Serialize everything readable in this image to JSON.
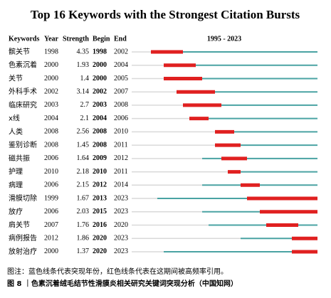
{
  "title": "Top 16 Keywords with the Strongest Citation Bursts",
  "headers": [
    "Keywords",
    "Year",
    "Strength",
    "Begin",
    "End"
  ],
  "range_label": "1995 - 2023",
  "range": [
    1995,
    2023
  ],
  "rows": [
    {
      "keyword": "髌关节",
      "year": 1998,
      "strength": 4.35,
      "begin": 1998,
      "end": 2002
    },
    {
      "keyword": "色素沉着",
      "year": 2000,
      "strength": 1.93,
      "begin": 2000,
      "end": 2004
    },
    {
      "keyword": "关节",
      "year": 2000,
      "strength": 1.4,
      "begin": 2000,
      "end": 2005
    },
    {
      "keyword": "外科手术",
      "year": 2002,
      "strength": 3.14,
      "begin": 2002,
      "end": 2007
    },
    {
      "keyword": "临床研究",
      "year": 2003,
      "strength": 2.7,
      "begin": 2003,
      "end": 2008
    },
    {
      "keyword": "x线",
      "year": 2004,
      "strength": 2.1,
      "begin": 2004,
      "end": 2006
    },
    {
      "keyword": "人类",
      "year": 2008,
      "strength": 2.56,
      "begin": 2008,
      "end": 2010
    },
    {
      "keyword": "鉴别诊断",
      "year": 2008,
      "strength": 1.45,
      "begin": 2008,
      "end": 2011
    },
    {
      "keyword": "磁共振",
      "year": 2006,
      "strength": 1.64,
      "begin": 2009,
      "end": 2012
    },
    {
      "keyword": "护理",
      "year": 2010,
      "strength": 2.18,
      "begin": 2010,
      "end": 2011
    },
    {
      "keyword": "病理",
      "year": 2006,
      "strength": 2.15,
      "begin": 2012,
      "end": 2014
    },
    {
      "keyword": "滑膜切除",
      "year": 1999,
      "strength": 1.67,
      "begin": 2013,
      "end": 2023
    },
    {
      "keyword": "放疗",
      "year": 2006,
      "strength": 2.03,
      "begin": 2015,
      "end": 2023
    },
    {
      "keyword": "肩关节",
      "year": 2007,
      "strength": 1.76,
      "begin": 2016,
      "end": 2020
    },
    {
      "keyword": "病例报告",
      "year": 2012,
      "strength": 1.86,
      "begin": 2020,
      "end": 2023
    },
    {
      "keyword": "放射治疗",
      "year": 2000,
      "strength": 1.37,
      "begin": 2020,
      "end": 2023
    }
  ],
  "note": "图注：蓝色线条代表突现年份，红色线条代表在这期间被高频率引用。",
  "caption": "图 8 ｜色素沉着绒毛结节性滑膜炎相关研究关键词突现分析（中国知网）"
}
